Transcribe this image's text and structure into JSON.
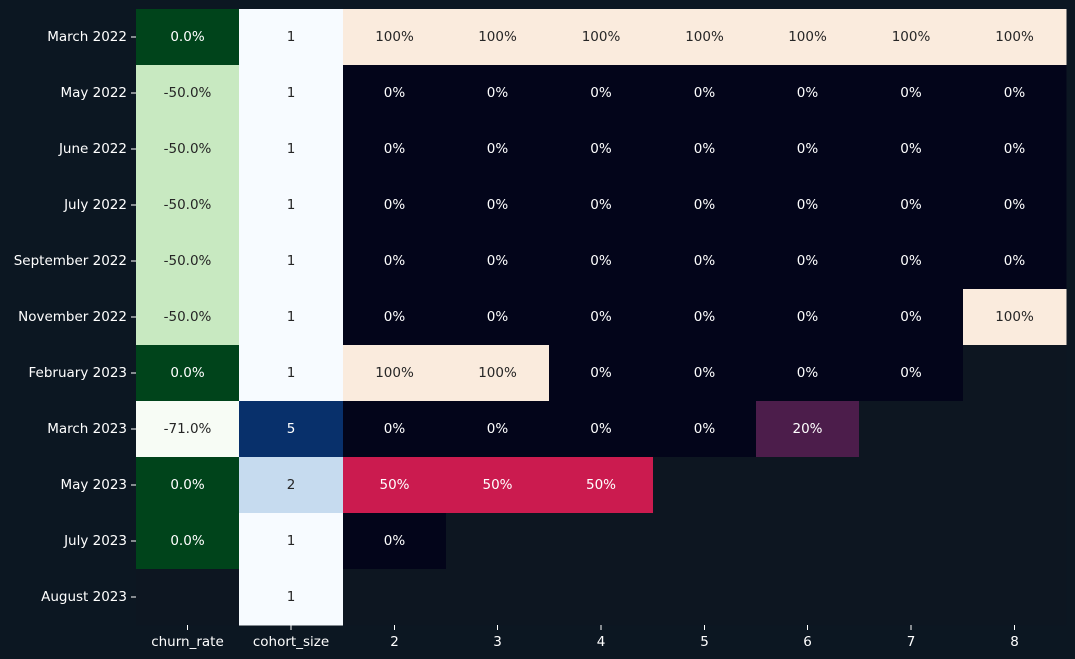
{
  "colors": {
    "background": "#0c1722",
    "empty_cell": "#0d1621",
    "tick_text": "#ffffff"
  },
  "chart_data": {
    "type": "heatmap",
    "title": "",
    "xlabel": "",
    "ylabel": "",
    "rows": [
      "March 2022",
      "May 2022",
      "June 2022",
      "July 2022",
      "September 2022",
      "November 2022",
      "February 2023",
      "March 2023",
      "May 2023",
      "July 2023",
      "August 2023"
    ],
    "columns": [
      "churn_rate",
      "cohort_size",
      "2",
      "3",
      "4",
      "5",
      "6",
      "7",
      "8"
    ],
    "churn_rate": [
      0.0,
      -50.0,
      -50.0,
      -50.0,
      -50.0,
      -50.0,
      0.0,
      -71.0,
      0.0,
      0.0,
      null
    ],
    "churn_rate_labels": [
      "0.0%",
      "-50.0%",
      "-50.0%",
      "-50.0%",
      "-50.0%",
      "-50.0%",
      "0.0%",
      "-71.0%",
      "0.0%",
      "0.0%",
      ""
    ],
    "cohort_size": [
      1,
      1,
      1,
      1,
      1,
      1,
      1,
      5,
      2,
      1,
      1
    ],
    "cohort_size_labels": [
      "1",
      "1",
      "1",
      "1",
      "1",
      "1",
      "1",
      "5",
      "2",
      "1",
      "1"
    ],
    "retention": [
      [
        100,
        100,
        100,
        100,
        100,
        100,
        100
      ],
      [
        0,
        0,
        0,
        0,
        0,
        0,
        0
      ],
      [
        0,
        0,
        0,
        0,
        0,
        0,
        0
      ],
      [
        0,
        0,
        0,
        0,
        0,
        0,
        0
      ],
      [
        0,
        0,
        0,
        0,
        0,
        0,
        0
      ],
      [
        0,
        0,
        0,
        0,
        0,
        0,
        100
      ],
      [
        100,
        100,
        0,
        0,
        0,
        0,
        null
      ],
      [
        0,
        0,
        0,
        0,
        20,
        null,
        null
      ],
      [
        50,
        50,
        50,
        null,
        null,
        null,
        null
      ],
      [
        0,
        null,
        null,
        null,
        null,
        null,
        null
      ],
      [
        null,
        null,
        null,
        null,
        null,
        null,
        null
      ]
    ],
    "retention_labels": [
      [
        "100%",
        "100%",
        "100%",
        "100%",
        "100%",
        "100%",
        "100%"
      ],
      [
        "0%",
        "0%",
        "0%",
        "0%",
        "0%",
        "0%",
        "0%"
      ],
      [
        "0%",
        "0%",
        "0%",
        "0%",
        "0%",
        "0%",
        "0%"
      ],
      [
        "0%",
        "0%",
        "0%",
        "0%",
        "0%",
        "0%",
        "0%"
      ],
      [
        "0%",
        "0%",
        "0%",
        "0%",
        "0%",
        "0%",
        "0%"
      ],
      [
        "0%",
        "0%",
        "0%",
        "0%",
        "0%",
        "0%",
        "100%"
      ],
      [
        "100%",
        "100%",
        "0%",
        "0%",
        "0%",
        "0%",
        ""
      ],
      [
        "0%",
        "0%",
        "0%",
        "0%",
        "20%",
        "",
        ""
      ],
      [
        "50%",
        "50%",
        "50%",
        "",
        "",
        "",
        ""
      ],
      [
        "0%",
        "",
        "",
        "",
        "",
        "",
        ""
      ],
      [
        "",
        "",
        "",
        "",
        "",
        "",
        ""
      ]
    ],
    "colormaps": {
      "churn_rate": "Greens (reversed, -71 to 0)",
      "cohort_size": "Blues (1 to 5)",
      "retention": "rocket (0 to 100)"
    },
    "grid": false,
    "legend": "none"
  }
}
